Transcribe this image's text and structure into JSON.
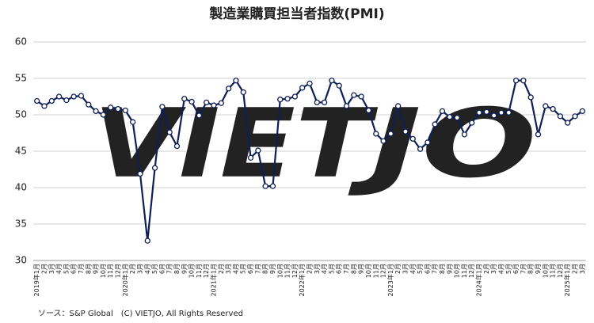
{
  "chart_data": {
    "type": "line",
    "title": "製造業購買担当者指数(PMI)",
    "source": "ソース：S&P Global　(C) VIETJO, All Rights Reserved",
    "watermark": {
      "parts": [
        "VIET",
        "JO"
      ],
      "colors": [
        "#a9b6dc",
        "#a8dcb8"
      ]
    },
    "categories": [
      "2019年1月",
      "2月",
      "3月",
      "4月",
      "5月",
      "6月",
      "7月",
      "8月",
      "9月",
      "10月",
      "11月",
      "12月",
      "2020年1月",
      "2月",
      "3月",
      "4月",
      "5月",
      "6月",
      "7月",
      "8月",
      "9月",
      "10月",
      "11月",
      "12月",
      "2021年1月",
      "2月",
      "3月",
      "4月",
      "5月",
      "6月",
      "7月",
      "8月",
      "9月",
      "10月",
      "11月",
      "12月",
      "2022年1月",
      "2月",
      "3月",
      "4月",
      "5月",
      "6月",
      "7月",
      "8月",
      "9月",
      "10月",
      "11月",
      "12月",
      "2023年1月",
      "2月",
      "3月",
      "4月",
      "5月",
      "6月",
      "7月",
      "8月",
      "9月",
      "10月",
      "11月",
      "12月",
      "2024年1月",
      "2月",
      "3月",
      "4月",
      "5月",
      "6月",
      "7月",
      "8月",
      "9月",
      "10月",
      "11月",
      "12月",
      "2025年1月",
      "2月",
      "3月"
    ],
    "values": [
      51.9,
      51.2,
      51.9,
      52.5,
      52.0,
      52.5,
      52.6,
      51.4,
      50.5,
      50.0,
      51.0,
      50.8,
      50.6,
      49.0,
      41.9,
      32.7,
      42.7,
      51.1,
      47.6,
      45.7,
      52.2,
      51.8,
      49.9,
      51.7,
      51.3,
      51.6,
      53.6,
      54.7,
      53.1,
      44.1,
      45.1,
      40.2,
      40.2,
      52.1,
      52.2,
      52.5,
      53.7,
      54.3,
      51.7,
      51.7,
      54.7,
      54.0,
      51.2,
      52.7,
      52.5,
      50.6,
      47.4,
      46.4,
      47.4,
      51.2,
      47.7,
      46.7,
      45.3,
      46.2,
      48.7,
      50.5,
      49.7,
      49.6,
      47.3,
      48.9,
      50.3,
      50.4,
      49.9,
      50.3,
      50.3,
      54.7,
      54.7,
      52.4,
      47.3,
      51.2,
      50.8,
      49.8,
      48.9,
      49.8,
      50.5
    ],
    "color": "#0f1f55",
    "ylim": [
      30,
      60
    ],
    "yticks": [
      30,
      35,
      40,
      45,
      50,
      55,
      60
    ],
    "grid": true
  }
}
